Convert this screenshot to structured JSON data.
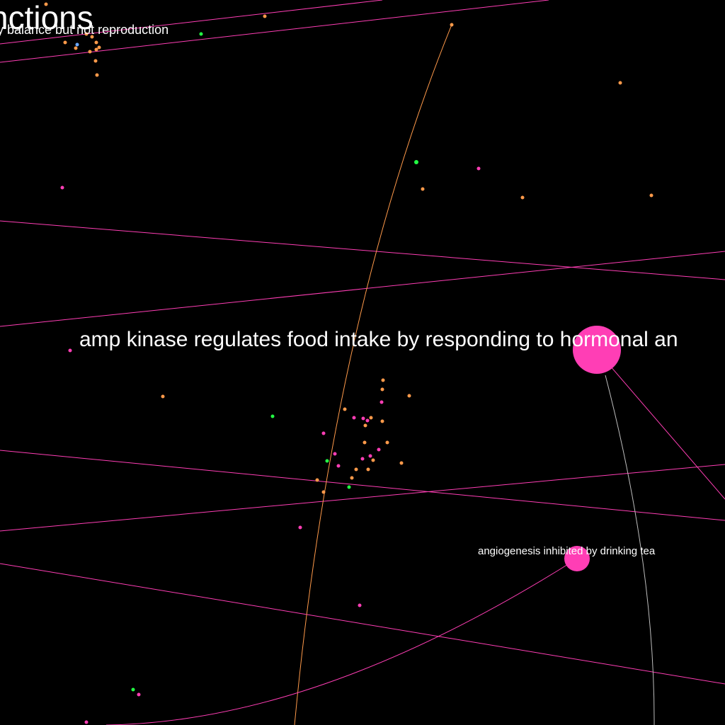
{
  "graph": {
    "background": "#000000",
    "colors": {
      "magenta": "#ff3eb5",
      "orange": "#ff9a4a",
      "green": "#22ff44",
      "blue": "#6aa8ff",
      "gray": "#bdbdbd",
      "label": "#ffffff"
    },
    "labels": {
      "title_fragment": "nctions",
      "balance_fragment": "y balance but not reproduction",
      "amp_kinase": "amp kinase regulates food intake by responding to hormonal an",
      "angiogenesis": "angiogenesis inhibited by drinking tea"
    }
  }
}
